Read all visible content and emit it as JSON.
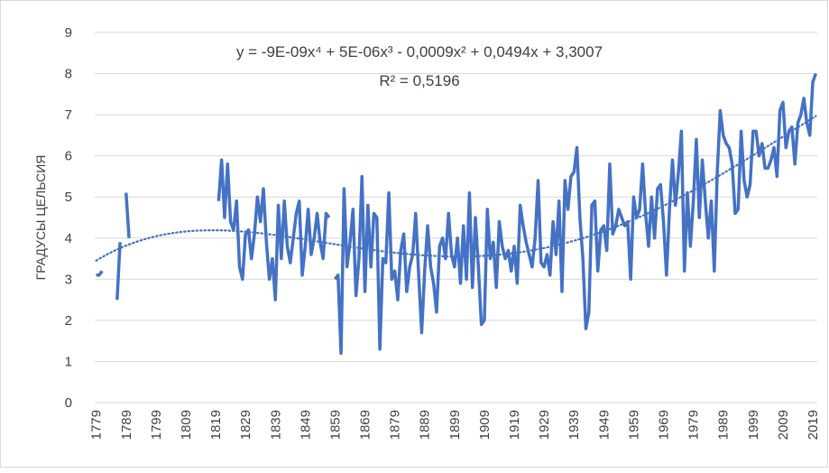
{
  "chart_data": {
    "type": "line",
    "y_axis_label": "ГРАДУСЫ ЦЕЛЬСИЯ",
    "annotations": [
      "y = -9E-09x⁴ + 5E-06x³ - 0,0009x² + 0,0494x + 3,3007",
      "R² = 0,5196"
    ],
    "categories": [
      "1779",
      null,
      null,
      null,
      null,
      null,
      null,
      null,
      null,
      null,
      "1789",
      null,
      null,
      null,
      null,
      null,
      null,
      null,
      null,
      null,
      "1799",
      null,
      null,
      null,
      null,
      null,
      null,
      null,
      null,
      null,
      "1809",
      null,
      null,
      null,
      null,
      null,
      null,
      null,
      null,
      null,
      "1819",
      null,
      null,
      null,
      null,
      null,
      null,
      null,
      null,
      null,
      "1829",
      null,
      null,
      null,
      null,
      null,
      null,
      null,
      null,
      null,
      "1839",
      null,
      null,
      null,
      null,
      null,
      null,
      null,
      null,
      null,
      "1849",
      null,
      null,
      null,
      null,
      null,
      null,
      null,
      null,
      null,
      "1859",
      null,
      null,
      null,
      null,
      null,
      null,
      null,
      null,
      null,
      "1869",
      null,
      null,
      null,
      null,
      null,
      null,
      null,
      null,
      null,
      "1879",
      null,
      null,
      null,
      null,
      null,
      null,
      null,
      null,
      null,
      "1889",
      null,
      null,
      null,
      null,
      null,
      null,
      null,
      null,
      null,
      "1899",
      null,
      null,
      null,
      null,
      null,
      null,
      null,
      null,
      null,
      "1909",
      null,
      null,
      null,
      null,
      null,
      null,
      null,
      null,
      null,
      "1919",
      null,
      null,
      null,
      null,
      null,
      null,
      null,
      null,
      null,
      "1929",
      null,
      null,
      null,
      null,
      null,
      null,
      null,
      null,
      null,
      "1939",
      null,
      null,
      null,
      null,
      null,
      null,
      null,
      null,
      null,
      "1949",
      null,
      null,
      null,
      null,
      null,
      null,
      null,
      null,
      null,
      "1959",
      null,
      null,
      null,
      null,
      null,
      null,
      null,
      null,
      null,
      "1969",
      null,
      null,
      null,
      null,
      null,
      null,
      null,
      null,
      null,
      "1979",
      null,
      null,
      null,
      null,
      null,
      null,
      null,
      null,
      null,
      "1989",
      null,
      null,
      null,
      null,
      null,
      null,
      null,
      null,
      null,
      "1999",
      null,
      null,
      null,
      null,
      null,
      null,
      null,
      null,
      null,
      "2009",
      null,
      null,
      null,
      null,
      null,
      null,
      null,
      null,
      null,
      "2019",
      null
    ],
    "values": [
      3.1,
      3.1,
      3.2,
      null,
      null,
      null,
      null,
      2.5,
      3.9,
      null,
      5.1,
      4.0,
      null,
      null,
      null,
      null,
      null,
      null,
      null,
      null,
      null,
      null,
      null,
      null,
      null,
      null,
      null,
      null,
      null,
      null,
      null,
      null,
      null,
      null,
      null,
      null,
      null,
      null,
      null,
      null,
      null,
      4.9,
      5.9,
      4.5,
      5.8,
      4.4,
      4.2,
      4.9,
      3.3,
      3.0,
      4.1,
      4.2,
      3.5,
      4.1,
      5.0,
      4.4,
      5.2,
      3.9,
      3.0,
      3.5,
      2.5,
      4.8,
      3.5,
      4.9,
      3.8,
      3.4,
      4.0,
      4.6,
      4.9,
      3.1,
      3.8,
      4.7,
      3.6,
      4.0,
      4.6,
      3.9,
      3.5,
      4.6,
      4.5,
      null,
      3.0,
      3.1,
      1.2,
      5.2,
      3.3,
      3.9,
      4.7,
      2.6,
      3.5,
      5.5,
      2.7,
      4.8,
      3.3,
      4.6,
      4.5,
      1.3,
      3.5,
      3.4,
      5.1,
      3.0,
      3.2,
      2.5,
      3.7,
      4.1,
      2.7,
      3.3,
      3.6,
      4.6,
      3.1,
      1.7,
      3.2,
      4.3,
      3.3,
      2.9,
      2.2,
      3.8,
      4.0,
      3.5,
      4.6,
      3.6,
      3.3,
      4.0,
      2.9,
      4.3,
      3.0,
      5.1,
      2.8,
      4.5,
      3.3,
      1.9,
      2.0,
      4.7,
      3.5,
      3.9,
      2.8,
      4.4,
      3.8,
      3.5,
      3.7,
      3.2,
      3.8,
      2.9,
      4.8,
      4.3,
      3.9,
      3.6,
      3.3,
      4.0,
      5.4,
      3.4,
      3.3,
      3.6,
      3.1,
      4.4,
      3.6,
      4.9,
      2.7,
      5.4,
      4.7,
      5.5,
      5.6,
      6.2,
      4.5,
      3.5,
      1.8,
      2.2,
      4.8,
      4.9,
      3.2,
      4.2,
      4.3,
      3.7,
      5.8,
      4.1,
      4.3,
      4.7,
      4.5,
      4.3,
      4.4,
      3.0,
      5.0,
      4.5,
      4.7,
      5.8,
      4.6,
      3.8,
      5.0,
      4.0,
      5.2,
      5.3,
      4.4,
      3.1,
      4.7,
      5.9,
      4.8,
      5.6,
      6.6,
      3.2,
      5.1,
      3.8,
      4.9,
      6.4,
      4.5,
      5.9,
      4.9,
      4.0,
      4.9,
      3.2,
      5.6,
      7.1,
      6.5,
      6.3,
      6.2,
      5.8,
      4.6,
      4.7,
      6.6,
      5.4,
      5.0,
      5.3,
      6.6,
      6.6,
      6.0,
      6.3,
      5.7,
      5.7,
      5.9,
      6.2,
      5.5,
      7.1,
      7.3,
      6.2,
      6.6,
      6.7,
      5.8,
      6.8,
      7.0,
      7.4,
      6.8,
      6.5,
      7.8,
      8.0
    ],
    "color": "#4472c4",
    "trendline": {
      "type": "polynomial",
      "order": 4,
      "style": "dotted"
    },
    "ylim": [
      0,
      9
    ],
    "yticks": [
      0,
      1,
      2,
      3,
      4,
      5,
      6,
      7,
      8,
      9
    ],
    "grid": true
  }
}
